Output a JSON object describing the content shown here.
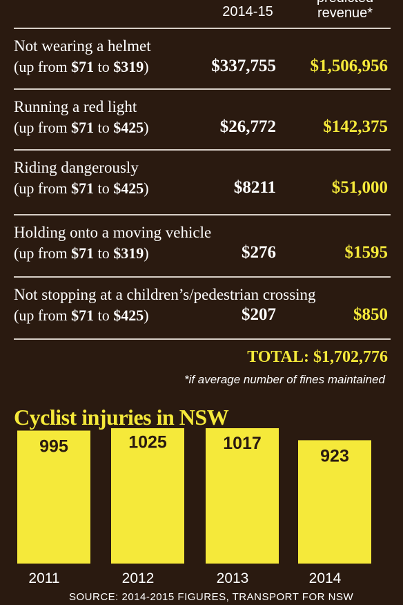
{
  "header": {
    "col1": "2014-15",
    "col2_line1": "predicted",
    "col2_line2": "revenue*"
  },
  "fines": [
    {
      "offence": "Not wearing a helmet",
      "sub_prefix": "(up from ",
      "from": "$71",
      "sub_mid": " to ",
      "to": "$319",
      "sub_suffix": ")",
      "amount_2014": "$337,755",
      "predicted": "$1,506,956"
    },
    {
      "offence": "Running a red light",
      "sub_prefix": "(up from ",
      "from": "$71",
      "sub_mid": " to ",
      "to": "$425",
      "sub_suffix": ")",
      "amount_2014": "$26,772",
      "predicted": "$142,375"
    },
    {
      "offence": "Riding dangerously",
      "sub_prefix": "(up from ",
      "from": "$71",
      "sub_mid": " to ",
      "to": "$425",
      "sub_suffix": ")",
      "amount_2014": "$8211",
      "predicted": "$51,000"
    },
    {
      "offence": "Holding onto a moving vehicle",
      "sub_prefix": "(up from ",
      "from": "$71",
      "sub_mid": " to ",
      "to": "$319",
      "sub_suffix": ")",
      "amount_2014": "$276",
      "predicted": "$1595"
    },
    {
      "offence": "Not stopping at a children’s/pedestrian crossing",
      "sub_prefix": "(up from ",
      "from": "$71",
      "sub_mid": " to ",
      "to": "$425",
      "sub_suffix": ")",
      "amount_2014": "$207",
      "predicted": "$850"
    }
  ],
  "total": "TOTAL: $1,702,776",
  "footnote": "*if average number of fines maintained",
  "source": "SOURCE: 2014-2015 FIGURES, TRANSPORT FOR NSW",
  "colors": {
    "background": "#2a1a10",
    "accent": "#f5e93a",
    "text": "#ffffff"
  },
  "chart_data": {
    "type": "bar",
    "title": "Cyclist injuries in NSW",
    "categories": [
      "2011",
      "2012",
      "2013",
      "2014"
    ],
    "values": [
      995,
      1025,
      1017,
      923
    ],
    "data_labels": [
      "995",
      "1025",
      "1017",
      "923"
    ],
    "xlabel": "",
    "ylabel": "",
    "grid": false
  }
}
